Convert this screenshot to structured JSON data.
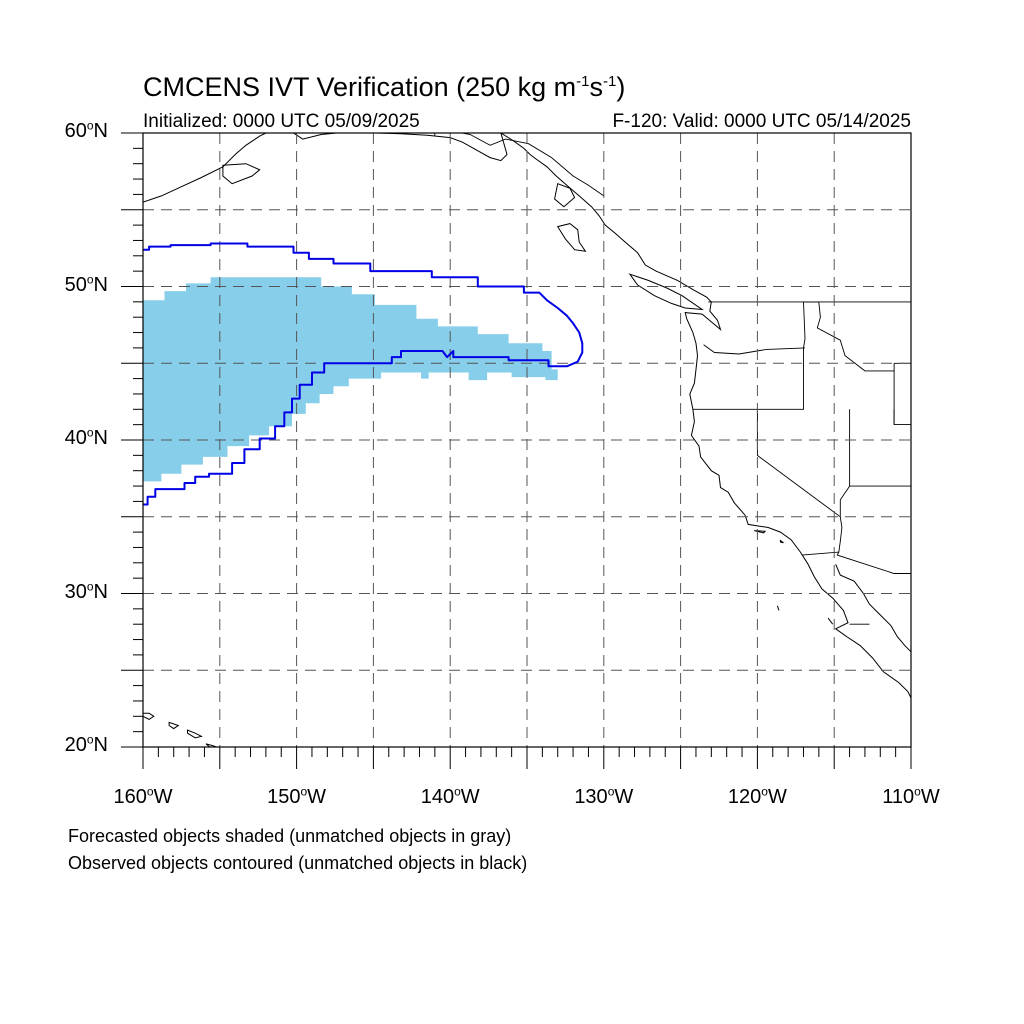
{
  "title": {
    "prefix": "CMCENS IVT Verification (250 kg m",
    "exp1": "-1",
    "mid": "s",
    "exp2": "-1",
    "suffix": ")"
  },
  "init_text": "Initialized: 0000 UTC 05/09/2025",
  "valid_text": "F-120: Valid: 0000 UTC 05/14/2025",
  "lat_labels": [
    {
      "deg": 60,
      "num": "60",
      "hemi": "N"
    },
    {
      "deg": 50,
      "num": "50",
      "hemi": "N"
    },
    {
      "deg": 40,
      "num": "40",
      "hemi": "N"
    },
    {
      "deg": 30,
      "num": "30",
      "hemi": "N"
    },
    {
      "deg": 20,
      "num": "20",
      "hemi": "N"
    }
  ],
  "lon_labels": [
    {
      "deg": -160,
      "num": "160",
      "hemi": "W"
    },
    {
      "deg": -150,
      "num": "150",
      "hemi": "W"
    },
    {
      "deg": -140,
      "num": "140",
      "hemi": "W"
    },
    {
      "deg": -130,
      "num": "130",
      "hemi": "W"
    },
    {
      "deg": -120,
      "num": "120",
      "hemi": "W"
    },
    {
      "deg": -110,
      "num": "110",
      "hemi": "W"
    }
  ],
  "legend_notes": [
    "Forecasted objects shaded (unmatched objects in gray)",
    "Observed objects contoured (unmatched objects in black)"
  ],
  "map": {
    "lon_range": [
      -160,
      -110
    ],
    "lat_range": [
      20,
      60
    ],
    "grid_spacing_deg": 5,
    "grid_style": "dashed",
    "colors": {
      "forecast_fill": "#87ceea",
      "observed_contour": "#0000e6",
      "coastline": "#000000",
      "grid": "#555555"
    },
    "forecast_object": [
      [
        -160,
        49.1
      ],
      [
        -158.6,
        49.1
      ],
      [
        -158.6,
        49.7
      ],
      [
        -157.2,
        49.7
      ],
      [
        -157.2,
        50.2
      ],
      [
        -155.6,
        50.2
      ],
      [
        -155.6,
        50.6
      ],
      [
        -148.4,
        50.6
      ],
      [
        -148.4,
        50.0
      ],
      [
        -146.4,
        50.0
      ],
      [
        -146.4,
        49.5
      ],
      [
        -144.9,
        49.5
      ],
      [
        -144.9,
        48.8
      ],
      [
        -142.2,
        48.8
      ],
      [
        -142.2,
        47.9
      ],
      [
        -140.8,
        47.9
      ],
      [
        -140.8,
        47.4
      ],
      [
        -138.2,
        47.4
      ],
      [
        -138.2,
        46.9
      ],
      [
        -136.2,
        46.9
      ],
      [
        -136.2,
        46.3
      ],
      [
        -134.0,
        46.3
      ],
      [
        -134.0,
        45.8
      ],
      [
        -133.4,
        45.8
      ],
      [
        -133.4,
        44.6
      ],
      [
        -133.0,
        44.6
      ],
      [
        -133.0,
        43.9
      ],
      [
        -133.8,
        43.9
      ],
      [
        -133.8,
        44.1
      ],
      [
        -136.0,
        44.1
      ],
      [
        -136.0,
        44.4
      ],
      [
        -137.6,
        44.4
      ],
      [
        -137.6,
        43.9
      ],
      [
        -138.8,
        43.9
      ],
      [
        -138.8,
        44.4
      ],
      [
        -141.4,
        44.4
      ],
      [
        -141.4,
        44.0
      ],
      [
        -141.9,
        44.0
      ],
      [
        -141.9,
        44.4
      ],
      [
        -144.5,
        44.4
      ],
      [
        -144.5,
        44.0
      ],
      [
        -146.6,
        44.0
      ],
      [
        -146.6,
        43.5
      ],
      [
        -147.6,
        43.5
      ],
      [
        -147.6,
        43.0
      ],
      [
        -148.5,
        43.0
      ],
      [
        -148.5,
        42.4
      ],
      [
        -149.4,
        42.4
      ],
      [
        -149.4,
        41.7
      ],
      [
        -150.3,
        41.7
      ],
      [
        -150.3,
        40.9
      ],
      [
        -151.8,
        40.9
      ],
      [
        -151.8,
        40.3
      ],
      [
        -153.1,
        40.3
      ],
      [
        -153.1,
        39.6
      ],
      [
        -154.5,
        39.6
      ],
      [
        -154.5,
        38.9
      ],
      [
        -156.1,
        38.9
      ],
      [
        -156.1,
        38.4
      ],
      [
        -157.5,
        38.4
      ],
      [
        -157.5,
        37.8
      ],
      [
        -158.8,
        37.8
      ],
      [
        -158.8,
        37.3
      ],
      [
        -160,
        37.3
      ]
    ],
    "observed_contour": [
      [
        -160,
        52.4
      ],
      [
        -159.6,
        52.4
      ],
      [
        -159.6,
        52.6
      ],
      [
        -158.2,
        52.6
      ],
      [
        -158.2,
        52.7
      ],
      [
        -155.6,
        52.7
      ],
      [
        -155.6,
        52.8
      ],
      [
        -153.2,
        52.8
      ],
      [
        -153.2,
        52.6
      ],
      [
        -150.2,
        52.6
      ],
      [
        -150.2,
        52.2
      ],
      [
        -149.2,
        52.2
      ],
      [
        -149.2,
        51.8
      ],
      [
        -147.6,
        51.8
      ],
      [
        -147.6,
        51.5
      ],
      [
        -145.2,
        51.5
      ],
      [
        -145.2,
        51.0
      ],
      [
        -141.2,
        51.0
      ],
      [
        -141.2,
        50.6
      ],
      [
        -138.2,
        50.6
      ],
      [
        -138.2,
        50.0
      ],
      [
        -135.2,
        50.0
      ],
      [
        -135.2,
        49.6
      ],
      [
        -134.2,
        49.6
      ],
      [
        -133.7,
        49.1
      ],
      [
        -133.0,
        48.6
      ],
      [
        -132.4,
        48.1
      ],
      [
        -132.0,
        47.6
      ],
      [
        -131.6,
        47.0
      ],
      [
        -131.4,
        46.3
      ],
      [
        -131.4,
        45.7
      ],
      [
        -131.7,
        45.1
      ],
      [
        -132.4,
        44.8
      ],
      [
        -133.6,
        44.8
      ],
      [
        -133.6,
        45.2
      ],
      [
        -136.2,
        45.2
      ],
      [
        -136.2,
        45.4
      ],
      [
        -139.8,
        45.4
      ],
      [
        -139.8,
        45.8
      ],
      [
        -140.2,
        45.4
      ],
      [
        -140.5,
        45.8
      ],
      [
        -143.2,
        45.8
      ],
      [
        -143.2,
        45.4
      ],
      [
        -143.8,
        45.4
      ],
      [
        -143.8,
        45.0
      ],
      [
        -148.2,
        45.0
      ],
      [
        -148.2,
        44.4
      ],
      [
        -149.0,
        44.4
      ],
      [
        -149.0,
        43.6
      ],
      [
        -149.8,
        43.6
      ],
      [
        -149.8,
        42.7
      ],
      [
        -150.3,
        42.7
      ],
      [
        -150.3,
        41.8
      ],
      [
        -150.8,
        41.8
      ],
      [
        -150.8,
        40.9
      ],
      [
        -151.4,
        40.9
      ],
      [
        -151.4,
        40.1
      ],
      [
        -152.4,
        40.1
      ],
      [
        -152.4,
        39.4
      ],
      [
        -153.4,
        39.4
      ],
      [
        -153.4,
        38.5
      ],
      [
        -154.2,
        38.5
      ],
      [
        -154.2,
        37.8
      ],
      [
        -155.7,
        37.8
      ],
      [
        -155.7,
        37.6
      ],
      [
        -156.6,
        37.6
      ],
      [
        -156.6,
        37.2
      ],
      [
        -157.3,
        37.2
      ],
      [
        -157.3,
        36.8
      ],
      [
        -159.2,
        36.8
      ],
      [
        -159.2,
        36.3
      ],
      [
        -159.7,
        36.3
      ],
      [
        -159.7,
        35.8
      ],
      [
        -160,
        35.8
      ]
    ],
    "coastline": [
      [
        -136.7,
        60
      ],
      [
        -135.9,
        59.5
      ],
      [
        -135.2,
        59.0
      ],
      [
        -134.8,
        58.6
      ],
      [
        -134.4,
        58.3
      ],
      [
        -133.7,
        57.8
      ],
      [
        -133.1,
        57.2
      ],
      [
        -132.3,
        56.5
      ],
      [
        -131.6,
        55.9
      ],
      [
        -130.8,
        55.2
      ],
      [
        -130.3,
        54.6
      ],
      [
        -129.9,
        54.0
      ],
      [
        -129.3,
        53.5
      ],
      [
        -128.5,
        52.8
      ],
      [
        -127.8,
        52.2
      ],
      [
        -127.3,
        51.4
      ],
      [
        -126.6,
        51.0
      ],
      [
        -125.2,
        50.4
      ],
      [
        -124.2,
        49.8
      ],
      [
        -123.3,
        49.3
      ],
      [
        -123.0,
        49.0
      ],
      [
        -123.1,
        48.4
      ],
      [
        -122.6,
        47.8
      ],
      [
        -122.4,
        47.2
      ],
      [
        -123.6,
        48.2
      ],
      [
        -124.7,
        48.3
      ],
      [
        -124.6,
        47.9
      ],
      [
        -124.2,
        47.0
      ],
      [
        -124.0,
        46.3
      ],
      [
        -123.9,
        45.5
      ],
      [
        -124.0,
        44.6
      ],
      [
        -124.1,
        43.7
      ],
      [
        -124.4,
        43.0
      ],
      [
        -124.2,
        42.0
      ],
      [
        -124.1,
        41.2
      ],
      [
        -124.3,
        40.3
      ],
      [
        -123.8,
        39.6
      ],
      [
        -123.7,
        38.9
      ],
      [
        -123.0,
        38.0
      ],
      [
        -122.5,
        37.7
      ],
      [
        -122.4,
        36.9
      ],
      [
        -121.9,
        36.6
      ],
      [
        -121.5,
        35.9
      ],
      [
        -120.8,
        35.1
      ],
      [
        -120.6,
        34.5
      ],
      [
        -119.3,
        34.3
      ],
      [
        -118.5,
        34.0
      ],
      [
        -117.8,
        33.5
      ],
      [
        -117.2,
        32.7
      ],
      [
        -116.7,
        31.9
      ],
      [
        -116.3,
        31.1
      ],
      [
        -115.8,
        30.3
      ],
      [
        -115.1,
        29.7
      ],
      [
        -114.4,
        28.9
      ],
      [
        -114.1,
        28.1
      ],
      [
        -114.9,
        27.7
      ],
      [
        -114.2,
        27.2
      ],
      [
        -113.3,
        26.6
      ],
      [
        -112.5,
        25.8
      ],
      [
        -111.8,
        24.9
      ],
      [
        -110.8,
        24.2
      ],
      [
        -110.2,
        23.6
      ],
      [
        -110,
        23.2
      ]
    ],
    "gulf_coast": [
      [
        -114.9,
        31.9
      ],
      [
        -114.6,
        31.2
      ],
      [
        -113.7,
        30.8
      ],
      [
        -113.1,
        30.0
      ],
      [
        -112.7,
        29.3
      ],
      [
        -112.0,
        28.6
      ],
      [
        -111.3,
        27.9
      ],
      [
        -110.9,
        27.2
      ],
      [
        -110.4,
        26.6
      ],
      [
        -110,
        26.2
      ]
    ],
    "alaska_coast": [
      [
        -160,
        55.5
      ],
      [
        -158.8,
        55.9
      ],
      [
        -157.5,
        56.5
      ],
      [
        -156.2,
        57.1
      ],
      [
        -154.8,
        57.8
      ],
      [
        -154.0,
        58.6
      ],
      [
        -153.3,
        59.2
      ],
      [
        -152.4,
        59.8
      ],
      [
        -152.0,
        60
      ],
      null,
      [
        -150.2,
        60
      ],
      [
        -149.6,
        59.6
      ],
      [
        -148.4,
        59.9
      ],
      [
        -147.4,
        60
      ],
      null,
      [
        -144.8,
        60
      ],
      [
        -143.2,
        59.95
      ],
      [
        -141.5,
        59.85
      ],
      [
        -140.0,
        59.7
      ],
      [
        -139.2,
        59.4
      ],
      [
        -138.3,
        58.9
      ],
      [
        -137.4,
        58.4
      ],
      [
        -136.7,
        58.2
      ],
      [
        -136.3,
        58.6
      ],
      [
        -136.7,
        60
      ]
    ],
    "islands": [
      [
        [
          -154.8,
          57.9
        ],
        [
          -153.3,
          58.0
        ],
        [
          -152.4,
          57.6
        ],
        [
          -152.9,
          57.2
        ],
        [
          -154.2,
          56.7
        ],
        [
          -154.8,
          57.2
        ],
        [
          -154.8,
          57.9
        ]
      ],
      [
        [
          -133.0,
          56.7
        ],
        [
          -132.2,
          56.4
        ],
        [
          -131.9,
          55.8
        ],
        [
          -132.6,
          55.2
        ],
        [
          -133.2,
          55.7
        ],
        [
          -133.0,
          56.7
        ]
      ],
      [
        [
          -132.2,
          54.1
        ],
        [
          -131.7,
          53.7
        ],
        [
          -131.6,
          52.9
        ],
        [
          -131.2,
          52.3
        ],
        [
          -131.9,
          52.4
        ],
        [
          -132.5,
          53.1
        ],
        [
          -133.0,
          53.9
        ],
        [
          -132.2,
          54.1
        ]
      ],
      [
        [
          -128.3,
          50.8
        ],
        [
          -127.1,
          50.4
        ],
        [
          -125.9,
          49.9
        ],
        [
          -124.9,
          49.4
        ],
        [
          -123.6,
          48.5
        ],
        [
          -124.7,
          48.6
        ],
        [
          -125.6,
          48.9
        ],
        [
          -126.7,
          49.4
        ],
        [
          -127.8,
          50.1
        ],
        [
          -128.3,
          50.8
        ]
      ],
      [
        [
          -160,
          22.2
        ],
        [
          -159.6,
          22.2
        ],
        [
          -159.3,
          22.0
        ],
        [
          -159.6,
          21.8
        ],
        [
          -160,
          22.0
        ],
        [
          -160,
          22.2
        ]
      ],
      [
        [
          -158.3,
          21.6
        ],
        [
          -157.7,
          21.4
        ],
        [
          -158.0,
          21.2
        ],
        [
          -158.3,
          21.4
        ],
        [
          -158.3,
          21.6
        ]
      ],
      [
        [
          -157.1,
          21.1
        ],
        [
          -156.6,
          20.9
        ],
        [
          -156.2,
          20.7
        ],
        [
          -156.6,
          20.6
        ],
        [
          -157.1,
          20.9
        ],
        [
          -157.1,
          21.1
        ]
      ],
      [
        [
          -155.9,
          20.2
        ],
        [
          -155.5,
          20.1
        ],
        [
          -155.2,
          20.0
        ],
        [
          -155.6,
          19.95
        ],
        [
          -155.9,
          20.2
        ]
      ],
      [
        [
          -120.2,
          34.1
        ],
        [
          -119.5,
          34.05
        ],
        [
          -119.6,
          33.95
        ],
        [
          -120.2,
          34.1
        ]
      ],
      [
        [
          -118.5,
          33.45
        ],
        [
          -118.3,
          33.3
        ],
        [
          -118.5,
          33.35
        ],
        [
          -118.5,
          33.45
        ]
      ],
      [
        [
          -118.7,
          29.2
        ],
        [
          -118.6,
          28.9
        ],
        [
          -118.7,
          29.2
        ]
      ],
      [
        [
          -115.4,
          28.4
        ],
        [
          -115.1,
          28.0
        ],
        [
          -115.4,
          28.4
        ]
      ]
    ],
    "borders": [
      [
        [
          -141.0,
          60
        ],
        [
          -141.0,
          59.8
        ]
      ],
      [
        [
          -130.0,
          55.9
        ],
        [
          -131.0,
          56.6
        ],
        [
          -132.0,
          57.2
        ],
        [
          -133.4,
          58.4
        ],
        [
          -134.9,
          59.3
        ],
        [
          -136.4,
          59.6
        ],
        [
          -137.4,
          59.2
        ],
        [
          -138.7,
          59.9
        ],
        [
          -139.2,
          60
        ]
      ],
      [
        [
          -123.2,
          49
        ],
        [
          -110,
          49
        ]
      ],
      [
        [
          -124.2,
          42
        ],
        [
          -117.0,
          42
        ],
        [
          -117.0,
          46.0
        ],
        [
          -116.9,
          46.6
        ],
        [
          -117.0,
          49
        ]
      ],
      [
        [
          -123.5,
          46.2
        ],
        [
          -122.8,
          45.7
        ],
        [
          -121.2,
          45.6
        ],
        [
          -119.4,
          45.9
        ],
        [
          -116.9,
          46.0
        ]
      ],
      [
        [
          -117.0,
          49
        ],
        [
          -116.0,
          49
        ],
        [
          -115.9,
          48.0
        ],
        [
          -116.1,
          47.3
        ],
        [
          -114.6,
          46.5
        ],
        [
          -114.3,
          45.5
        ],
        [
          -113.0,
          44.5
        ],
        [
          -111.1,
          44.5
        ]
      ],
      [
        [
          -120.0,
          42
        ],
        [
          -120.0,
          39.0
        ],
        [
          -114.6,
          35.0
        ]
      ],
      [
        [
          -114.0,
          42
        ],
        [
          -114.0,
          37.0
        ],
        [
          -114.6,
          36.1
        ],
        [
          -114.6,
          35.0
        ]
      ],
      [
        [
          -114.0,
          37.0
        ],
        [
          -110,
          37.0
        ]
      ],
      [
        [
          -111.1,
          42
        ],
        [
          -111.1,
          41.0
        ],
        [
          -110,
          41.0
        ]
      ],
      [
        [
          -111.1,
          45.0
        ],
        [
          -110,
          45.0
        ]
      ],
      [
        [
          -111.1,
          41.0
        ],
        [
          -111.1,
          45.0
        ]
      ],
      [
        [
          -117.1,
          32.5
        ],
        [
          -114.7,
          32.7
        ],
        [
          -114.8,
          32.5
        ],
        [
          -111.1,
          31.3
        ],
        [
          -110,
          31.3
        ]
      ],
      [
        [
          -114.7,
          32.7
        ],
        [
          -114.6,
          33.4
        ],
        [
          -114.5,
          34.3
        ],
        [
          -114.6,
          35.0
        ]
      ],
      [
        [
          -114.0,
          28.0
        ],
        [
          -112.7,
          28.0
        ]
      ]
    ]
  }
}
